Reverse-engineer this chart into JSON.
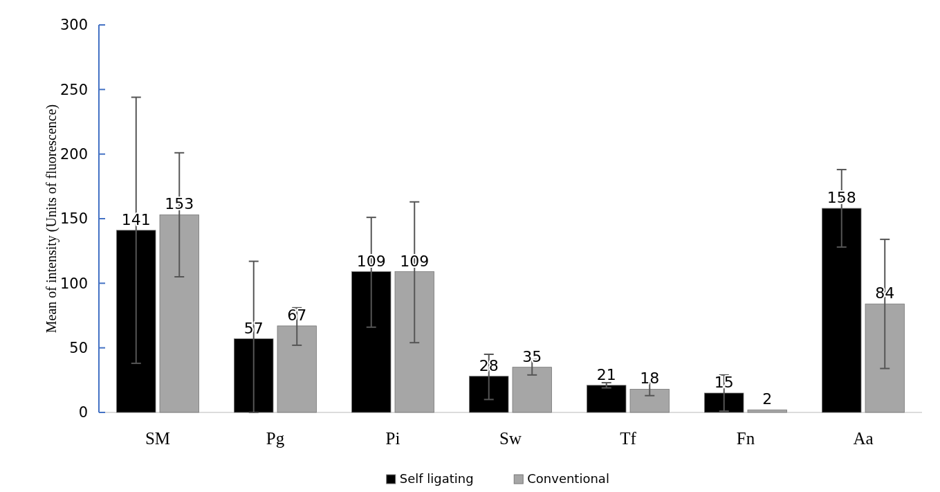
{
  "chart_data": {
    "type": "bar",
    "ylabel": "Mean of intensity (Units of fluorescence)",
    "categories": [
      "SM",
      "Pg",
      "Pi",
      "Sw",
      "Tf",
      "Fn",
      "Aa"
    ],
    "series": [
      {
        "name": "Self ligating",
        "color": "#000000",
        "values": [
          141,
          57,
          109,
          28,
          21,
          15,
          158
        ],
        "errors": [
          [
            38,
            244
          ],
          [
            0,
            117
          ],
          [
            66,
            151
          ],
          [
            10,
            45
          ],
          [
            19,
            23
          ],
          [
            1,
            29
          ],
          [
            128,
            188
          ]
        ]
      },
      {
        "name": "Conventional",
        "color": "#a6a6a6",
        "values": [
          153,
          67,
          109,
          35,
          18,
          2,
          84
        ],
        "errors": [
          [
            105,
            201
          ],
          [
            52,
            81
          ],
          [
            54,
            163
          ],
          [
            29,
            41
          ],
          [
            13,
            23
          ],
          null,
          [
            34,
            134
          ]
        ]
      }
    ],
    "ylim": [
      0,
      300
    ],
    "yticks": [
      0,
      50,
      100,
      150,
      200,
      250,
      300
    ],
    "data_labels": true,
    "grid": false,
    "legend": "bottom"
  }
}
